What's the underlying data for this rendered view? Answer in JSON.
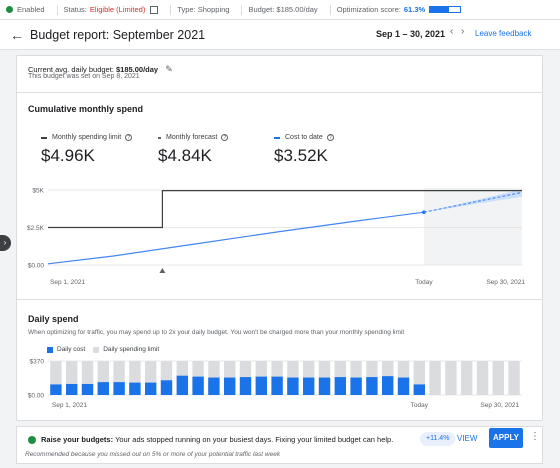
{
  "status": {
    "enabled": "Enabled",
    "status_label": "Status:",
    "status_value": "Eligible (Limited)",
    "type": "Type: Shopping",
    "budget": "Budget: $185.00/day",
    "optimization_label": "Optimization score:",
    "optimization_value": "61.3%",
    "optimization_fraction": 0.613
  },
  "header": {
    "title": "Budget report: September 2021",
    "date_range": "Sep 1 – 30, 2021",
    "feedback": "Leave feedback"
  },
  "budget_info": {
    "label": "Current avg. daily budget:",
    "value": "$185.00/day",
    "sub": "This budget was set on Sep 8, 2021"
  },
  "cumulative": {
    "title": "Cumulative monthly spend",
    "metrics": [
      {
        "label": "Monthly spending limit",
        "value": "$4.96K",
        "color": "#3c4043"
      },
      {
        "label": "Monthly forecast",
        "value": "$4.84K",
        "color": "#5f6368"
      },
      {
        "label": "Cost to date",
        "value": "$3.52K",
        "color": "#1a73e8"
      }
    ]
  },
  "daily": {
    "title": "Daily spend",
    "description": "When optimizing for traffic, you may spend up to 2x your daily budget. You won't be charged more than your monthly spending limit",
    "legend_cost": "Daily cost",
    "legend_limit": "Daily spending limit"
  },
  "chart_data": [
    {
      "type": "line",
      "y_ticks": [
        "$5K",
        "$2.5K",
        "$0.00"
      ],
      "x_ticks": [
        "Sep 1, 2021",
        "Today",
        "Sep 30, 2021"
      ],
      "ylim": [
        0,
        5000
      ],
      "x": [
        1,
        8,
        8,
        24,
        30
      ],
      "series": [
        {
          "name": "Monthly spending limit",
          "x": [
            1,
            8,
            8,
            30
          ],
          "values": [
            2500,
            2500,
            4960,
            4960
          ]
        },
        {
          "name": "Cost to date",
          "x": [
            1,
            5,
            10,
            15,
            20,
            24
          ],
          "values": [
            80,
            600,
            1400,
            2200,
            2950,
            3520
          ]
        },
        {
          "name": "Monthly forecast",
          "x": [
            24,
            27,
            30
          ],
          "values": [
            3520,
            4180,
            4840
          ]
        }
      ],
      "forecast_band": {
        "x": [
          24,
          30
        ],
        "low": [
          3520,
          4550
        ],
        "high": [
          3520,
          5050
        ]
      }
    },
    {
      "type": "bar",
      "y_ticks": [
        "$370",
        "$0.00"
      ],
      "x_ticks": [
        "Sep 1, 2021",
        "Today",
        "Sep 30, 2021"
      ],
      "ylim": [
        0,
        370
      ],
      "limit": [
        370,
        370,
        370,
        370,
        370,
        370,
        370,
        370,
        370,
        370,
        370,
        370,
        370,
        370,
        370,
        370,
        370,
        370,
        370,
        370,
        370,
        370,
        370,
        370,
        370,
        370,
        370,
        370,
        370,
        370
      ],
      "cost": [
        115,
        120,
        120,
        140,
        140,
        135,
        135,
        160,
        210,
        200,
        190,
        190,
        195,
        200,
        200,
        190,
        190,
        190,
        195,
        190,
        195,
        205,
        190,
        115,
        0,
        0,
        0,
        0,
        0,
        0
      ]
    }
  ],
  "banner": {
    "bold": "Raise your budgets:",
    "text": "Your ads stopped running on your busiest days. Fixing your limited budget can help.",
    "note": "Recommended because you missed out on 5% or more of your potential traffic last week",
    "chip": "+11.4%",
    "view": "VIEW",
    "apply": "APPLY"
  }
}
